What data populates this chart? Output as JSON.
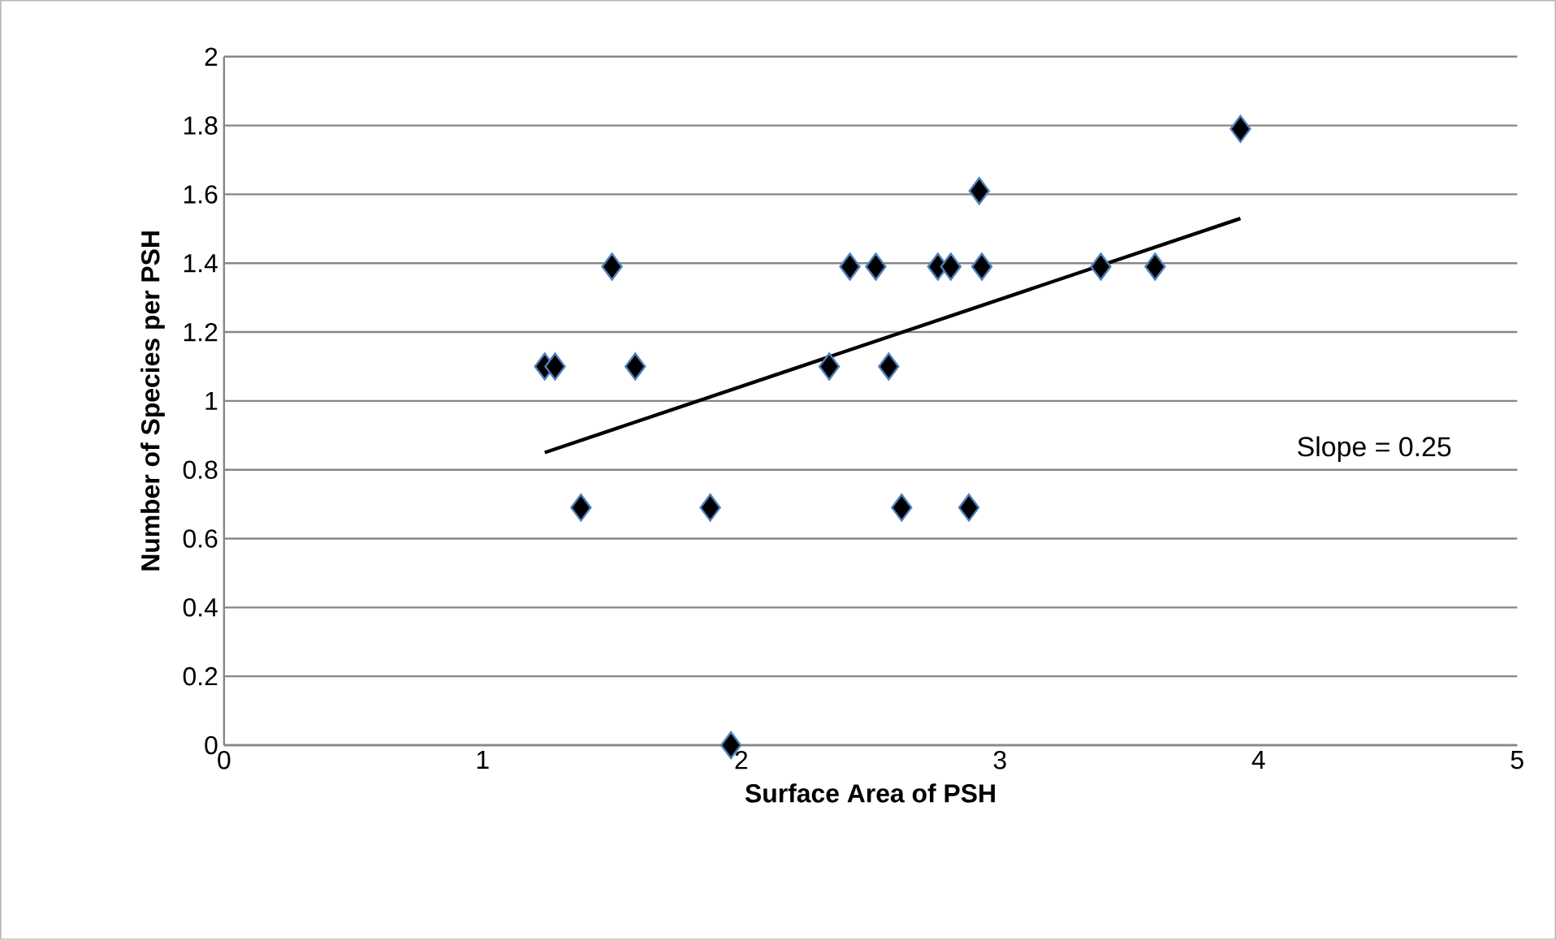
{
  "chart_data": {
    "type": "scatter",
    "xlabel": "Surface Area of PSH",
    "ylabel": "Number of Species per PSH",
    "xlim": [
      0,
      5
    ],
    "xticks": [
      0,
      1,
      2,
      3,
      4,
      5
    ],
    "ylim": [
      0,
      2
    ],
    "yticks": [
      0,
      0.2,
      0.4,
      0.6,
      0.8,
      1,
      1.2,
      1.4,
      1.6,
      1.8,
      2
    ],
    "grid": "y",
    "marker": "diamond",
    "annotations": [
      "Slope = 0.25"
    ],
    "series": [
      {
        "color": "#000000",
        "x": [
          1.24,
          1.28,
          1.5,
          1.59,
          1.38,
          1.88,
          1.96,
          2.34,
          2.42,
          2.52,
          2.57,
          2.62,
          2.76,
          2.81,
          2.88,
          2.92,
          2.93,
          3.39,
          3.6,
          3.93
        ],
        "values": [
          1.1,
          1.1,
          1.39,
          1.1,
          0.69,
          0.69,
          0,
          1.1,
          1.39,
          1.39,
          1.1,
          0.69,
          1.39,
          1.39,
          0.69,
          1.61,
          1.39,
          1.39,
          1.39,
          1.79
        ]
      },
      {
        "type": "line",
        "marker": "none",
        "color": "#000000",
        "x": [
          1.24,
          3.93
        ],
        "values": [
          0.85,
          1.53
        ]
      }
    ]
  }
}
